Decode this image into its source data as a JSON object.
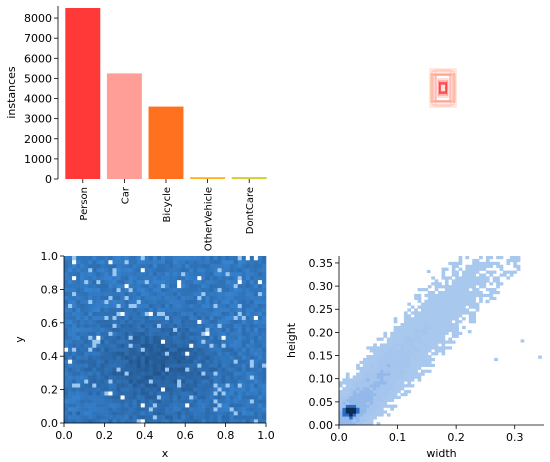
{
  "chart_data": [
    {
      "type": "bar",
      "ylabel": "instances",
      "categories": [
        "Person",
        "Car",
        "Bicycle",
        "OtherVehicle",
        "DontCare"
      ],
      "values": [
        8500,
        5250,
        3600,
        90,
        95
      ],
      "colors": [
        "#ff3838",
        "#ff9d97",
        "#ff701f",
        "#ffb21d",
        "#cfd231"
      ],
      "ylim": [
        0,
        8600
      ],
      "yticks": [
        0,
        1000,
        2000,
        3000,
        4000,
        5000,
        6000,
        7000,
        8000
      ],
      "grid": false
    },
    {
      "type": "other",
      "description_type": "overlaid label rectangles",
      "colors": [
        "#ff3838",
        "#ff9d97",
        "#ff701f"
      ]
    },
    {
      "type": "heatmap",
      "xlabel": "x",
      "ylabel": "y",
      "xlim": [
        0.0,
        1.0
      ],
      "ylim": [
        0.0,
        1.0
      ],
      "xticks": [
        "0.0",
        "0.2",
        "0.4",
        "0.6",
        "0.8",
        "1.0"
      ],
      "yticks": [
        "0.0",
        "0.2",
        "0.4",
        "0.6",
        "0.8",
        "1.0"
      ],
      "dense_center": [
        0.45,
        0.35
      ],
      "color": "#3b8ee0"
    },
    {
      "type": "heatmap",
      "xlabel": "width",
      "ylabel": "height",
      "xlim": [
        0.0,
        0.35
      ],
      "ylim": [
        0.0,
        0.365
      ],
      "xticks": [
        "0.0",
        "0.1",
        "0.2",
        "0.3"
      ],
      "yticks": [
        "0.00",
        "0.05",
        "0.10",
        "0.15",
        "0.20",
        "0.25",
        "0.30",
        "0.35"
      ],
      "dense_center": [
        0.02,
        0.03
      ],
      "correlation_slope": 1.4,
      "color": "#a9c8ee"
    }
  ]
}
